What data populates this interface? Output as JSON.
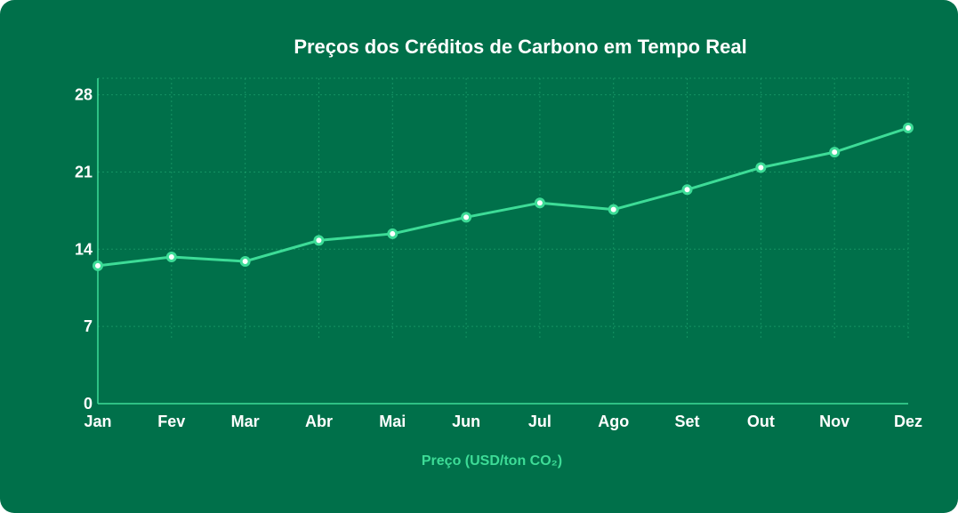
{
  "chart_data": {
    "type": "line",
    "title": "Preços dos Créditos de Carbono em Tempo Real",
    "categories": [
      "Jan",
      "Fev",
      "Mar",
      "Abr",
      "Mai",
      "Jun",
      "Jul",
      "Ago",
      "Set",
      "Out",
      "Nov",
      "Dez"
    ],
    "series": [
      {
        "name": "Preço (USD/ton CO₂)",
        "values": [
          12.5,
          13.3,
          12.9,
          14.8,
          15.4,
          16.9,
          18.2,
          17.6,
          19.4,
          21.4,
          22.8,
          25.0
        ],
        "color": "#3ddc97"
      }
    ],
    "yticks": [
      0,
      7,
      14,
      21,
      28
    ],
    "ylim": [
      0,
      29.5
    ],
    "grid": true,
    "legend_position": "bottom",
    "background_color": "#00704a",
    "text_color": "#ffffff"
  }
}
